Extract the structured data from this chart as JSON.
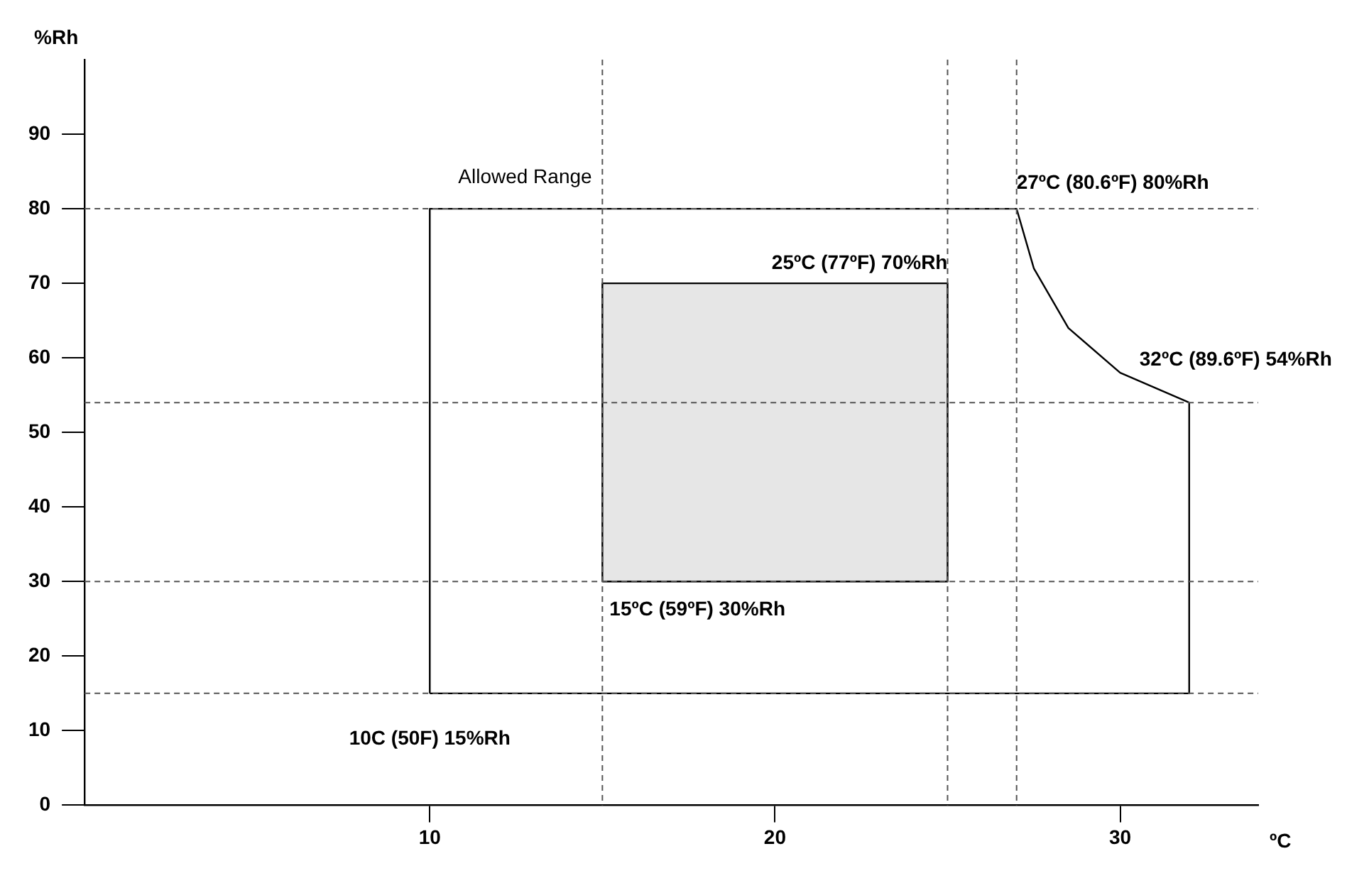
{
  "chart_data": {
    "type": "area",
    "xlabel": "ºC",
    "ylabel": "%Rh",
    "xlim": [
      0,
      34
    ],
    "xticks": [
      10,
      20,
      30
    ],
    "ylim": [
      0,
      100
    ],
    "yticks": [
      0,
      10,
      20,
      30,
      40,
      50,
      60,
      70,
      80,
      90
    ],
    "grid": false,
    "legend": false,
    "marker": "none",
    "line_style": "solid",
    "series": [
      {
        "color": "#e6e6e6",
        "x": [
          15,
          15,
          25,
          25,
          15
        ],
        "values": [
          30,
          70,
          70,
          30,
          30
        ]
      },
      {
        "color": "#ffffff",
        "x": [
          10,
          10,
          27,
          27.5,
          28.5,
          30,
          32,
          32,
          10
        ],
        "values": [
          15,
          80,
          80,
          72,
          64,
          58,
          54,
          15,
          15
        ]
      }
    ],
    "ref_lines": [
      {
        "axis": "y",
        "value": 80,
        "color": "#555555",
        "line_style": "dashed"
      },
      {
        "axis": "y",
        "value": 54,
        "color": "#555555",
        "line_style": "dashed"
      },
      {
        "axis": "y",
        "value": 30,
        "color": "#555555",
        "line_style": "dashed"
      },
      {
        "axis": "y",
        "value": 15,
        "color": "#555555",
        "line_style": "dashed"
      },
      {
        "axis": "x",
        "value": 15,
        "color": "#555555",
        "line_style": "dashed"
      },
      {
        "axis": "x",
        "value": 25,
        "color": "#555555",
        "line_style": "dashed"
      },
      {
        "axis": "x",
        "value": 27,
        "color": "#555555",
        "line_style": "dashed"
      }
    ],
    "annotations": [
      {
        "text": "Allowed Range",
        "x": 10,
        "y": 80
      },
      {
        "text": "27ºC (80.6ºF) 80%Rh",
        "x": 27,
        "y": 80
      },
      {
        "text": "32ºC (89.6ºF) 54%Rh",
        "x": 32,
        "y": 54
      },
      {
        "text": "25ºC (77ºF) 70%Rh",
        "x": 25,
        "y": 70
      },
      {
        "text": "15ºC (59ºF) 30%Rh",
        "x": 15,
        "y": 30
      },
      {
        "text": "10C (50F) 15%Rh",
        "x": 10,
        "y": 15
      }
    ]
  }
}
